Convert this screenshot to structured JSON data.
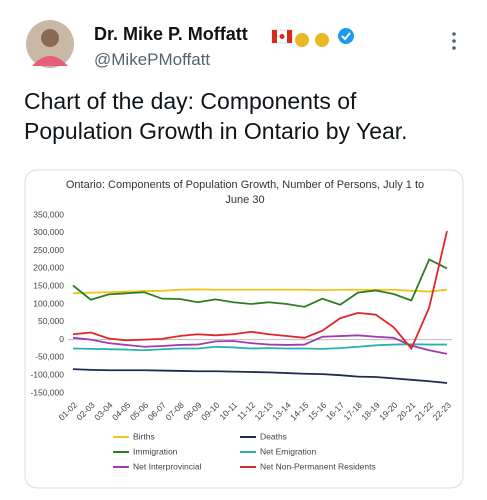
{
  "header": {
    "name": "Dr. Mike P. Moffatt",
    "handle": "@MikePMoffatt"
  },
  "tweet_text": "Chart of the day: Components of Population Growth in Ontario by Year.",
  "chart_data": {
    "type": "line",
    "title": "Ontario: Components of Population Growth, Number of Persons, July 1 to June 30",
    "categories": [
      "01-02",
      "02-03",
      "03-04",
      "04-05",
      "05-06",
      "06-07",
      "07-08",
      "08-09",
      "09-10",
      "10-11",
      "11-12",
      "12-13",
      "13-14",
      "14-15",
      "15-16",
      "16-17",
      "17-18",
      "18-19",
      "19-20",
      "20-21",
      "21-22",
      "22-23"
    ],
    "ylim": [
      -150000,
      350000
    ],
    "yticks": [
      {
        "value": -150000,
        "label": "-150,000"
      },
      {
        "value": -100000,
        "label": "-100,000"
      },
      {
        "value": -50000,
        "label": "-50,000"
      },
      0,
      {
        "value": 50000,
        "label": "50,000"
      },
      {
        "value": 100000,
        "label": "100,000"
      },
      {
        "value": 150000,
        "label": "150,000"
      },
      {
        "value": 200000,
        "label": "200,000"
      },
      {
        "value": 250000,
        "label": "250,000"
      },
      {
        "value": 300000,
        "label": "300,000"
      },
      {
        "value": 350000,
        "label": "350,000"
      }
    ],
    "grid": false,
    "series": [
      {
        "name": "Births",
        "color": "#f0c419",
        "values": [
          130000,
          132000,
          133000,
          135000,
          136000,
          137000,
          140000,
          141000,
          140000,
          140000,
          140000,
          140000,
          140000,
          140000,
          139000,
          140000,
          140000,
          140000,
          140000,
          137000,
          135000,
          140000
        ]
      },
      {
        "name": "Deaths",
        "color": "#1f2a56",
        "values": [
          -83000,
          -85000,
          -86000,
          -86000,
          -86000,
          -87000,
          -88000,
          -89000,
          -89000,
          -90000,
          -91000,
          -92000,
          -94000,
          -96000,
          -97000,
          -100000,
          -104000,
          -105000,
          -109000,
          -113000,
          -117000,
          -122000
        ]
      },
      {
        "name": "Immigration",
        "color": "#2e7d1f",
        "values": [
          152000,
          112000,
          127000,
          130000,
          133000,
          115000,
          114000,
          105000,
          113000,
          105000,
          100000,
          105000,
          100000,
          92000,
          115000,
          98000,
          132000,
          138000,
          128000,
          110000,
          225000,
          200000
        ]
      },
      {
        "name": "Net Emigration",
        "color": "#2ab0b0",
        "values": [
          -25000,
          -26000,
          -27000,
          -28000,
          -30000,
          -27000,
          -25000,
          -25000,
          -20000,
          -22000,
          -25000,
          -24000,
          -25000,
          -25000,
          -26000,
          -24000,
          -20000,
          -16000,
          -14000,
          -13000,
          -14000,
          -14000
        ]
      },
      {
        "name": "Net Interprovincial",
        "color": "#a23bb0",
        "values": [
          5000,
          0,
          -10000,
          -15000,
          -20000,
          -18000,
          -15000,
          -14000,
          -5000,
          -4000,
          -10000,
          -14000,
          -15000,
          -14000,
          8000,
          10000,
          12000,
          8000,
          5000,
          -17000,
          -30000,
          -40000
        ]
      },
      {
        "name": "Net Non-Permanent Residents",
        "color": "#e0262b",
        "values": [
          15000,
          20000,
          3000,
          -2000,
          0,
          2000,
          10000,
          15000,
          12000,
          15000,
          22000,
          15000,
          10000,
          5000,
          25000,
          60000,
          75000,
          70000,
          35000,
          -25000,
          90000,
          305000
        ]
      }
    ]
  }
}
